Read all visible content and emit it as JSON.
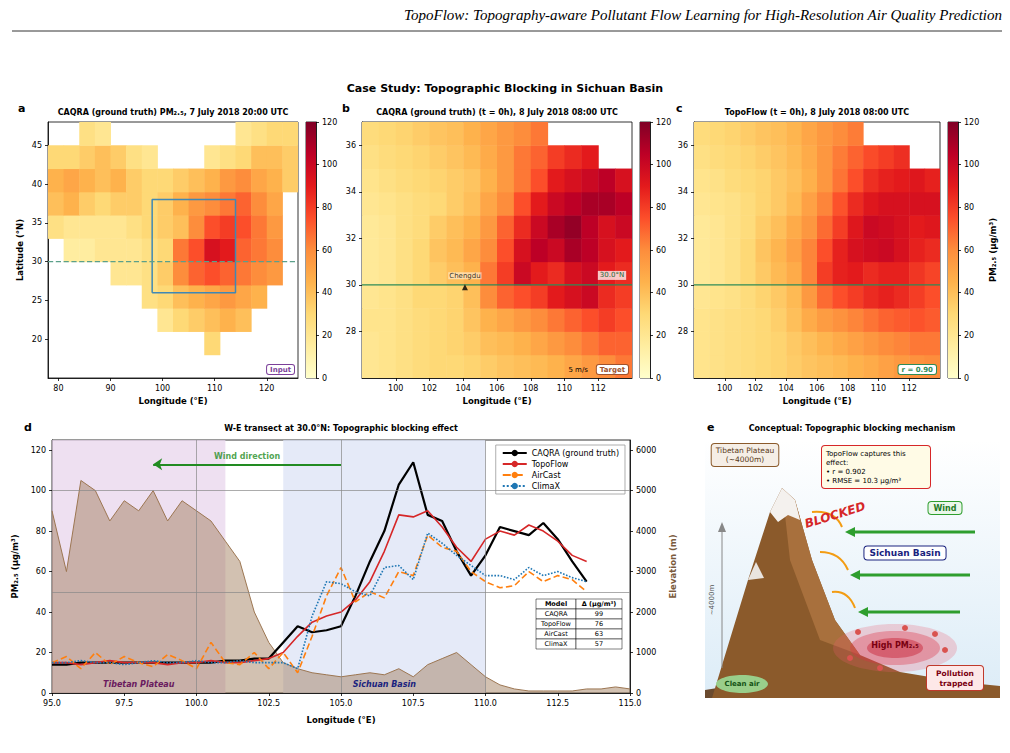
{
  "running_head": "TopoFlow: Topography-aware Pollutant Flow Learning for High-Resolution Air Quality Prediction",
  "figure_title": "Case Study: Topographic Blocking in Sichuan Basin",
  "chart_data": [
    {
      "panel": "a",
      "type": "heatmap",
      "title": "CAQRA (ground truth) PM₂.₅, 7 July 2018 20:00 UTC",
      "x_label": "Longitude (°E)",
      "y_label": "Latitude (°N)",
      "x": [
        79.5,
        82.5,
        85.5,
        88.5,
        91.5,
        94.5,
        97.5,
        100.5,
        103.5,
        106.5,
        109.5,
        112.5,
        115.5,
        118.5,
        121.5,
        124.5
      ],
      "y": [
        16.5,
        19.5,
        22.5,
        25.5,
        28.5,
        31.5,
        34.5,
        37.5,
        40.5,
        43.5,
        46.5
      ],
      "cells": [
        [
          null,
          null,
          null,
          null,
          null,
          null,
          null,
          null,
          null,
          null,
          null,
          null,
          null,
          null,
          null,
          null
        ],
        [
          null,
          null,
          null,
          null,
          null,
          null,
          null,
          null,
          null,
          null,
          30,
          null,
          null,
          null,
          null,
          null
        ],
        [
          null,
          null,
          null,
          null,
          null,
          null,
          null,
          20,
          30,
          35,
          40,
          45,
          40,
          null,
          null,
          null
        ],
        [
          null,
          null,
          null,
          null,
          null,
          null,
          25,
          30,
          40,
          45,
          50,
          55,
          50,
          45,
          null,
          null
        ],
        [
          null,
          null,
          null,
          null,
          20,
          20,
          25,
          35,
          60,
          70,
          75,
          70,
          65,
          60,
          55,
          null
        ],
        [
          null,
          15,
          15,
          20,
          20,
          20,
          25,
          30,
          65,
          75,
          95,
          90,
          70,
          65,
          60,
          null
        ],
        [
          25,
          20,
          20,
          20,
          20,
          25,
          30,
          35,
          40,
          60,
          75,
          80,
          75,
          65,
          55,
          null
        ],
        [
          40,
          45,
          35,
          30,
          35,
          35,
          30,
          35,
          45,
          55,
          60,
          65,
          70,
          60,
          50,
          null
        ],
        [
          45,
          50,
          45,
          40,
          45,
          35,
          30,
          30,
          35,
          40,
          45,
          55,
          60,
          50,
          45,
          35
        ],
        [
          30,
          30,
          35,
          40,
          35,
          25,
          20,
          null,
          null,
          null,
          20,
          25,
          30,
          40,
          40,
          35
        ],
        [
          null,
          null,
          25,
          20,
          null,
          null,
          null,
          null,
          null,
          null,
          null,
          null,
          20,
          25,
          30,
          30
        ]
      ],
      "xlim": [
        78,
        126
      ],
      "ylim": [
        15,
        48
      ],
      "xticks": [
        80,
        90,
        100,
        110,
        120
      ],
      "yticks": [
        20,
        25,
        30,
        35,
        40,
        45
      ],
      "clim": [
        0,
        120
      ],
      "cticks": [
        0,
        20,
        40,
        60,
        80,
        100,
        120
      ],
      "box": {
        "xlim": [
          98,
          114
        ],
        "ylim": [
          26,
          38
        ],
        "color": "#3f88b5"
      },
      "transect": {
        "lat": 30,
        "color": "#5ba08a",
        "line_style": "dashed"
      },
      "badge": "Input",
      "grid": false
    },
    {
      "panel": "b",
      "type": "heatmap",
      "title": "CAQRA (ground truth) (t = 0h), 8 July 2018 08:00 UTC",
      "x_label": "Longitude (°E)",
      "x": [
        98.5,
        99.5,
        100.5,
        101.5,
        102.5,
        103.5,
        104.5,
        105.5,
        106.5,
        107.5,
        108.5,
        109.5,
        110.5,
        111.5,
        112.5,
        113.5
      ],
      "y": [
        26.5,
        27.5,
        28.5,
        29.5,
        30.5,
        31.5,
        32.5,
        33.5,
        34.5,
        35.5,
        36.5
      ],
      "cells": [
        [
          20,
          22,
          25,
          28,
          30,
          30,
          32,
          35,
          38,
          40,
          42,
          45,
          50,
          55,
          60,
          65
        ],
        [
          20,
          22,
          25,
          28,
          30,
          32,
          35,
          40,
          42,
          45,
          50,
          55,
          60,
          65,
          70,
          70
        ],
        [
          22,
          22,
          25,
          28,
          30,
          32,
          38,
          45,
          50,
          55,
          60,
          65,
          70,
          75,
          80,
          75
        ],
        [
          20,
          22,
          25,
          30,
          30,
          32,
          40,
          60,
          70,
          75,
          80,
          90,
          95,
          100,
          85,
          80
        ],
        [
          18,
          20,
          25,
          30,
          35,
          40,
          45,
          65,
          80,
          100,
          90,
          85,
          95,
          100,
          90,
          85
        ],
        [
          18,
          20,
          25,
          30,
          38,
          42,
          50,
          60,
          75,
          95,
          105,
          100,
          110,
          105,
          95,
          90
        ],
        [
          18,
          20,
          25,
          28,
          35,
          40,
          45,
          55,
          70,
          85,
          100,
          110,
          115,
          105,
          95,
          100
        ],
        [
          20,
          22,
          25,
          28,
          30,
          35,
          40,
          50,
          60,
          75,
          90,
          100,
          105,
          110,
          110,
          105
        ],
        [
          22,
          25,
          28,
          30,
          32,
          35,
          38,
          45,
          55,
          65,
          75,
          90,
          95,
          100,
          105,
          95
        ],
        [
          25,
          28,
          30,
          32,
          35,
          38,
          42,
          48,
          55,
          65,
          70,
          80,
          85,
          90,
          null,
          null
        ],
        [
          28,
          30,
          32,
          35,
          38,
          40,
          45,
          50,
          55,
          60,
          65,
          null,
          null,
          null,
          null,
          null
        ]
      ],
      "xlim": [
        98,
        114
      ],
      "ylim": [
        26,
        37
      ],
      "xticks": [
        100,
        102,
        104,
        106,
        108,
        110,
        112
      ],
      "yticks": [
        28,
        30,
        32,
        34,
        36
      ],
      "clim": [
        0,
        120
      ],
      "cticks": [
        0,
        20,
        40,
        60,
        80,
        100,
        120
      ],
      "transect": {
        "lat": 30,
        "label": "30.0°N",
        "color": "#2e8b57",
        "line_style": "solid"
      },
      "city": {
        "label": "Chengdu",
        "lon": 104.1,
        "lat": 29.9
      },
      "wind_key": "5 m/s",
      "badge": "Target",
      "grid": false
    },
    {
      "panel": "c",
      "type": "heatmap",
      "title": "TopoFlow (t = 0h), 8 July 2018 08:00 UTC",
      "x_label": "Longitude (°E)",
      "colorbar_label": "PM₂.₅ (µg/m³)",
      "x": [
        98.5,
        99.5,
        100.5,
        101.5,
        102.5,
        103.5,
        104.5,
        105.5,
        106.5,
        107.5,
        108.5,
        109.5,
        110.5,
        111.5,
        112.5,
        113.5
      ],
      "y": [
        26.5,
        27.5,
        28.5,
        29.5,
        30.5,
        31.5,
        32.5,
        33.5,
        34.5,
        35.5,
        36.5
      ],
      "cells": [
        [
          22,
          24,
          26,
          28,
          30,
          32,
          35,
          38,
          40,
          42,
          45,
          48,
          52,
          55,
          58,
          60
        ],
        [
          22,
          24,
          26,
          28,
          30,
          32,
          36,
          40,
          44,
          48,
          52,
          56,
          60,
          62,
          65,
          65
        ],
        [
          22,
          24,
          26,
          28,
          30,
          34,
          40,
          48,
          54,
          58,
          62,
          66,
          70,
          72,
          74,
          72
        ],
        [
          20,
          22,
          24,
          28,
          32,
          36,
          42,
          55,
          68,
          75,
          80,
          85,
          88,
          85,
          80,
          75
        ],
        [
          18,
          20,
          24,
          30,
          36,
          42,
          48,
          62,
          80,
          88,
          90,
          85,
          88,
          88,
          82,
          78
        ],
        [
          18,
          20,
          24,
          30,
          38,
          44,
          52,
          62,
          75,
          88,
          95,
          98,
          100,
          95,
          88,
          85
        ],
        [
          18,
          20,
          24,
          28,
          35,
          40,
          48,
          56,
          68,
          80,
          92,
          100,
          98,
          95,
          90,
          92
        ],
        [
          20,
          22,
          24,
          28,
          32,
          36,
          42,
          52,
          62,
          74,
          85,
          92,
          95,
          95,
          95,
          95
        ],
        [
          22,
          24,
          28,
          30,
          32,
          36,
          40,
          46,
          56,
          66,
          75,
          84,
          88,
          90,
          92,
          88
        ],
        [
          25,
          28,
          30,
          32,
          35,
          38,
          42,
          48,
          56,
          64,
          70,
          76,
          80,
          84,
          null,
          null
        ],
        [
          28,
          30,
          32,
          35,
          38,
          40,
          44,
          50,
          55,
          60,
          64,
          null,
          null,
          null,
          null,
          null
        ]
      ],
      "xlim": [
        98,
        114
      ],
      "ylim": [
        26,
        37
      ],
      "xticks": [
        100,
        102,
        104,
        106,
        108,
        110,
        112
      ],
      "yticks": [
        28,
        30,
        32,
        34,
        36
      ],
      "clim": [
        0,
        120
      ],
      "cticks": [
        0,
        20,
        40,
        60,
        80,
        100,
        120
      ],
      "transect": {
        "lat": 30,
        "color": "#2e8b57",
        "line_style": "solid"
      },
      "badge": "r = 0.90",
      "grid": false
    },
    {
      "panel": "d",
      "type": "line",
      "title": "W-E transect at 30.0°N: Topographic blocking effect",
      "x_label": "Longitude (°E)",
      "y_label": "PM₂.₅ (µg/m³)",
      "y2_label": "Elevation (m)",
      "x": [
        95,
        95.5,
        96,
        96.5,
        97,
        97.5,
        98,
        98.5,
        99,
        99.5,
        100,
        100.5,
        101,
        101.5,
        102,
        102.5,
        103,
        103.5,
        104,
        104.5,
        105,
        105.5,
        106,
        106.5,
        107,
        107.5,
        108,
        108.5,
        109,
        109.5,
        110,
        110.5,
        111,
        111.5,
        112,
        112.5,
        113,
        113.5,
        114,
        114.5,
        115
      ],
      "series": [
        {
          "type": "area",
          "axis": "y2",
          "color": "#9c7652",
          "values": [
            4500,
            3000,
            5250,
            5000,
            4250,
            4750,
            4500,
            5000,
            4250,
            4750,
            4500,
            4250,
            3750,
            3250,
            2000,
            1250,
            750,
            600,
            500,
            450,
            400,
            450,
            500,
            450,
            600,
            400,
            700,
            850,
            1000,
            700,
            400,
            200,
            100,
            50,
            50,
            50,
            50,
            100,
            100,
            150,
            100
          ]
        },
        {
          "name": "CAQRA (ground truth)",
          "color": "#000000",
          "line_style": "solid",
          "values": [
            14,
            14,
            15,
            15,
            15,
            15,
            15,
            15,
            15,
            15,
            15,
            15,
            16,
            16,
            17,
            17,
            25,
            33,
            30,
            31,
            33,
            48,
            65,
            80,
            103,
            114,
            88,
            85,
            70,
            58,
            68,
            82,
            80,
            78,
            84,
            76,
            65,
            55,
            null,
            null,
            null
          ]
        },
        {
          "name": "TopoFlow",
          "color": "#d62728",
          "line_style": "solid",
          "values": [
            15,
            15,
            14,
            15,
            16,
            15,
            15,
            15,
            14,
            15,
            15,
            16,
            15,
            15,
            16,
            17,
            20,
            28,
            35,
            38,
            40,
            46,
            55,
            70,
            88,
            87,
            90,
            82,
            72,
            65,
            76,
            80,
            78,
            83,
            80,
            75,
            68,
            65,
            null,
            null,
            null
          ]
        },
        {
          "name": "AirCast",
          "color": "#ff7f0e",
          "line_style": "dashed",
          "values": [
            15,
            18,
            12,
            20,
            14,
            18,
            15,
            13,
            19,
            16,
            12,
            25,
            15,
            14,
            20,
            12,
            20,
            10,
            28,
            48,
            62,
            45,
            50,
            47,
            60,
            58,
            78,
            72,
            70,
            60,
            55,
            52,
            53,
            60,
            55,
            58,
            56,
            50,
            null,
            null,
            null
          ]
        },
        {
          "name": "ClimaX",
          "color": "#1f77b4",
          "line_style": "dotted",
          "values": [
            15,
            15,
            16,
            15,
            15,
            14,
            15,
            16,
            15,
            15,
            16,
            15,
            15,
            16,
            15,
            15,
            15,
            12,
            38,
            55,
            54,
            50,
            48,
            62,
            63,
            56,
            79,
            74,
            68,
            63,
            58,
            58,
            56,
            62,
            58,
            60,
            57,
            55,
            null,
            null,
            null
          ]
        }
      ],
      "xlim": [
        95,
        115
      ],
      "xticks": [
        {
          "value": 95,
          "label": "95.0"
        },
        97.5,
        {
          "value": 100,
          "label": "100.0"
        },
        102.5,
        {
          "value": 105,
          "label": "105.0"
        },
        107.5,
        {
          "value": 110,
          "label": "110.0"
        },
        112.5,
        {
          "value": 115,
          "label": "115.0"
        }
      ],
      "ylim": [
        0,
        125
      ],
      "yticks": [
        0,
        20,
        40,
        60,
        80,
        100,
        120
      ],
      "y2lim": [
        0,
        6250
      ],
      "y2ticks": [
        0,
        1000,
        2000,
        3000,
        4000,
        5000,
        6000
      ],
      "legend": "upper right",
      "grid": false,
      "reference_lines": {
        "x": [
          100,
          105,
          110
        ],
        "y": [
          50,
          100
        ]
      },
      "regions": [
        {
          "label": "Tibetan Plateau",
          "xlim": [
            95,
            101
          ],
          "color": "#e8d6ec"
        },
        {
          "label": "Sichuan Basin",
          "xlim": [
            103,
            110
          ],
          "color": "#dce3f5"
        }
      ],
      "arrow": {
        "label": "Wind direction",
        "from": [
          105,
          113
        ],
        "to": [
          98.5,
          113
        ],
        "color": "#228b22"
      },
      "table": {
        "header": [
          "Model",
          "Δ (µg/m³)"
        ],
        "rows": [
          [
            "CAQRA",
            99
          ],
          [
            "TopoFlow",
            76
          ],
          [
            "AirCast",
            63
          ],
          [
            "ClimaX",
            57
          ]
        ]
      }
    }
  ],
  "diagram": {
    "panel": "e",
    "title": "Conceptual: Topographic blocking mechanism",
    "plateau": "Tibetan Plateau",
    "plateau_height": "(~4000m)",
    "height_marker": "~4000m",
    "summary": {
      "heading": "TopoFlow captures this effect:",
      "items": [
        "• r = 0.902",
        "• RMSE = 10.3 μg/m³"
      ]
    },
    "wind": "Wind",
    "blocked": "BLOCKED",
    "basin": "Sichuan Basin",
    "pollution": "High PM₂.₅",
    "trapped": "Pollution trapped",
    "clean": "Clean air"
  }
}
